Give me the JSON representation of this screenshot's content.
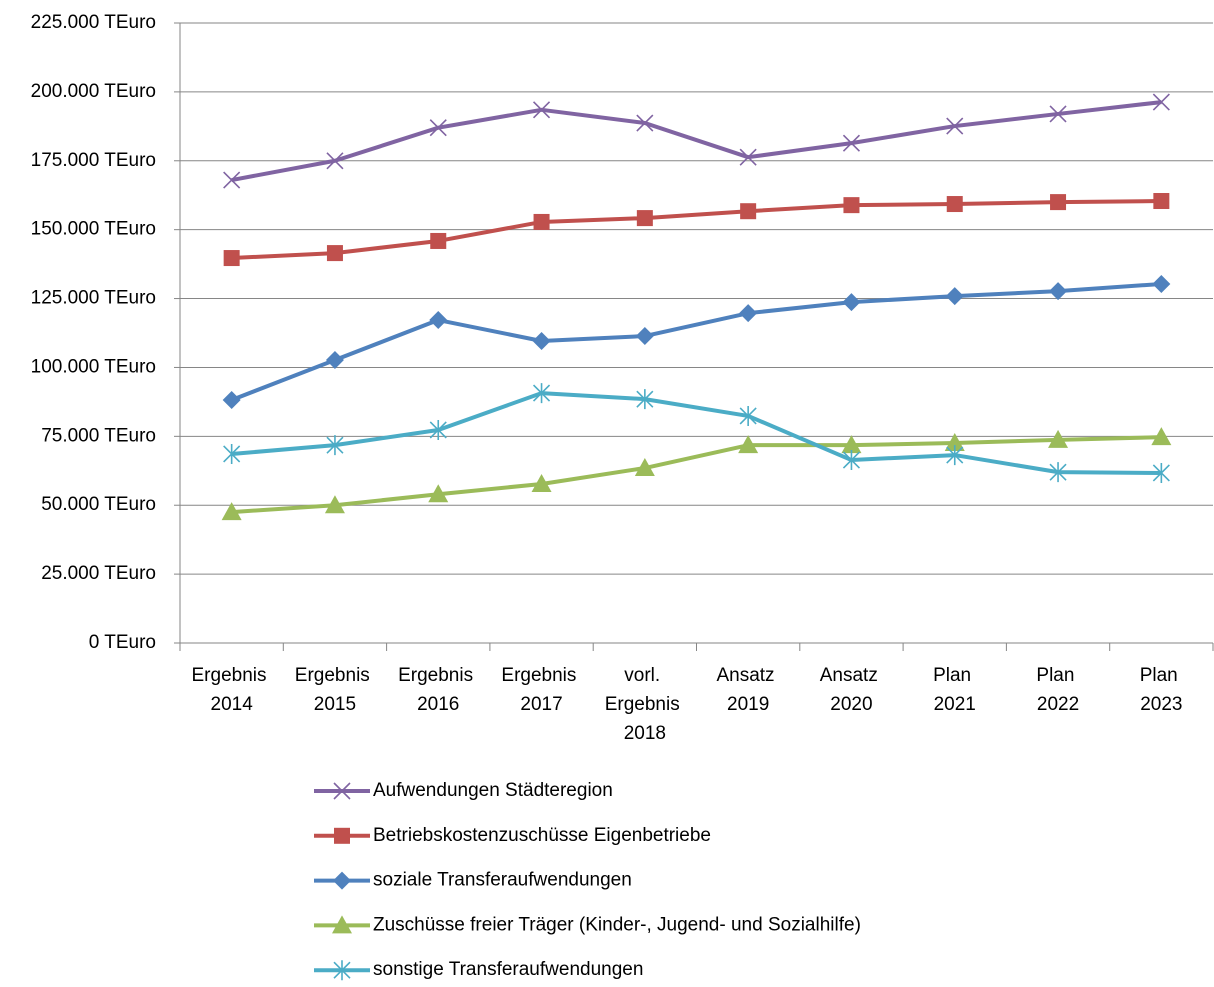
{
  "chart_data": {
    "type": "line",
    "categories": [
      "Ergebnis 2014",
      "Ergebnis 2015",
      "Ergebnis 2016",
      "Ergebnis 2017",
      "vorl. Ergebnis 2018",
      "Ansatz 2019",
      "Ansatz 2020",
      "Plan 2021",
      "Plan 2022",
      "Plan 2023"
    ],
    "series": [
      {
        "name": "Aufwendungen Städteregion",
        "color": "#8064a2",
        "marker": "x",
        "values": [
          168000,
          175000,
          187000,
          193500,
          188700,
          176300,
          181400,
          187600,
          192000,
          196300
        ]
      },
      {
        "name": "Betriebskostenzuschüsse Eigenbetriebe",
        "color": "#c0504d",
        "marker": "square",
        "values": [
          139700,
          141500,
          145900,
          152800,
          154200,
          156700,
          158900,
          159300,
          160000,
          160400
        ]
      },
      {
        "name": "soziale Transferaufwendungen",
        "color": "#4f81bd",
        "marker": "diamond",
        "values": [
          88200,
          102700,
          117200,
          109600,
          111400,
          119700,
          123700,
          125900,
          127700,
          130300
        ]
      },
      {
        "name": "Zuschüsse freier Träger (Kinder-, Jugend- und Sozialhilfe)",
        "color": "#9bbb59",
        "marker": "triangle",
        "values": [
          47500,
          50000,
          54000,
          57700,
          63500,
          71800,
          71800,
          72600,
          73700,
          74700
        ]
      },
      {
        "name": "sonstige Transferaufwendungen",
        "color": "#4bacc6",
        "marker": "asterisk",
        "values": [
          68600,
          71800,
          77300,
          90700,
          88500,
          82400,
          66400,
          68200,
          62000,
          61700
        ]
      }
    ],
    "ylim": [
      0,
      225000
    ],
    "yticks": [
      {
        "value": 0,
        "label": "0 TEuro"
      },
      {
        "value": 25000,
        "label": "25.000 TEuro"
      },
      {
        "value": 50000,
        "label": "50.000 TEuro"
      },
      {
        "value": 75000,
        "label": "75.000 TEuro"
      },
      {
        "value": 100000,
        "label": "100.000 TEuro"
      },
      {
        "value": 125000,
        "label": "125.000 TEuro"
      },
      {
        "value": 150000,
        "label": "150.000 TEuro"
      },
      {
        "value": 175000,
        "label": "175.000 TEuro"
      },
      {
        "value": 200000,
        "label": "200.000 TEuro"
      },
      {
        "value": 225000,
        "label": "225.000 TEuro"
      }
    ],
    "grid": true,
    "legend": "bottom"
  }
}
